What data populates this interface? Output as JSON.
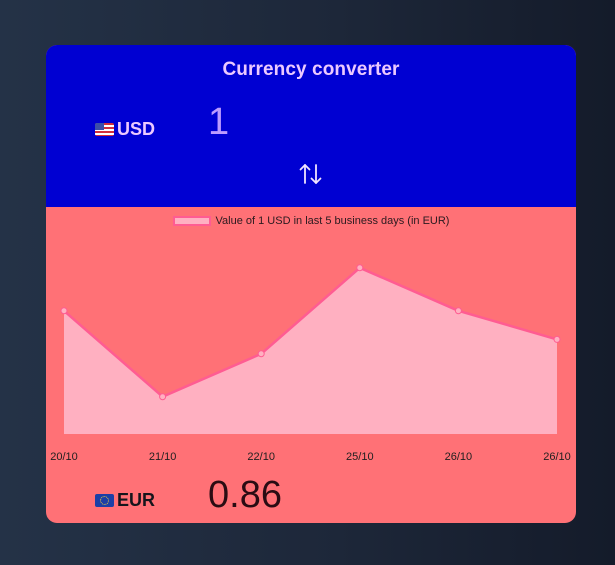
{
  "app": {
    "title": "Currency converter"
  },
  "from": {
    "code": "USD",
    "amount": "1",
    "flag_icon": "us-flag-icon"
  },
  "to": {
    "code": "EUR",
    "amount": "0.86",
    "flag_icon": "eu-flag-icon"
  },
  "swap": {
    "icon": "swap-arrows-icon"
  },
  "colors": {
    "top_panel": "#0000d2",
    "bottom_panel": "#ff7176",
    "title_text": "#ecc9ff",
    "from_amount": "#bd9cff",
    "line": "#ff5c92",
    "fill": "#ffb0c1"
  },
  "chart_data": {
    "type": "area",
    "legend": "Value of 1 USD in last 5 business days (in EUR)",
    "legend_position": "top",
    "categories": [
      "20/10",
      "21/10",
      "22/10",
      "25/10",
      "26/10",
      "26/10"
    ],
    "series": [
      {
        "name": "Value of 1 USD in last 5 business days (in EUR)",
        "values": [
          0.858,
          0.852,
          0.855,
          0.861,
          0.858,
          0.856
        ]
      }
    ],
    "ylim": [
      0.8494,
      0.8628
    ],
    "grid": false
  }
}
